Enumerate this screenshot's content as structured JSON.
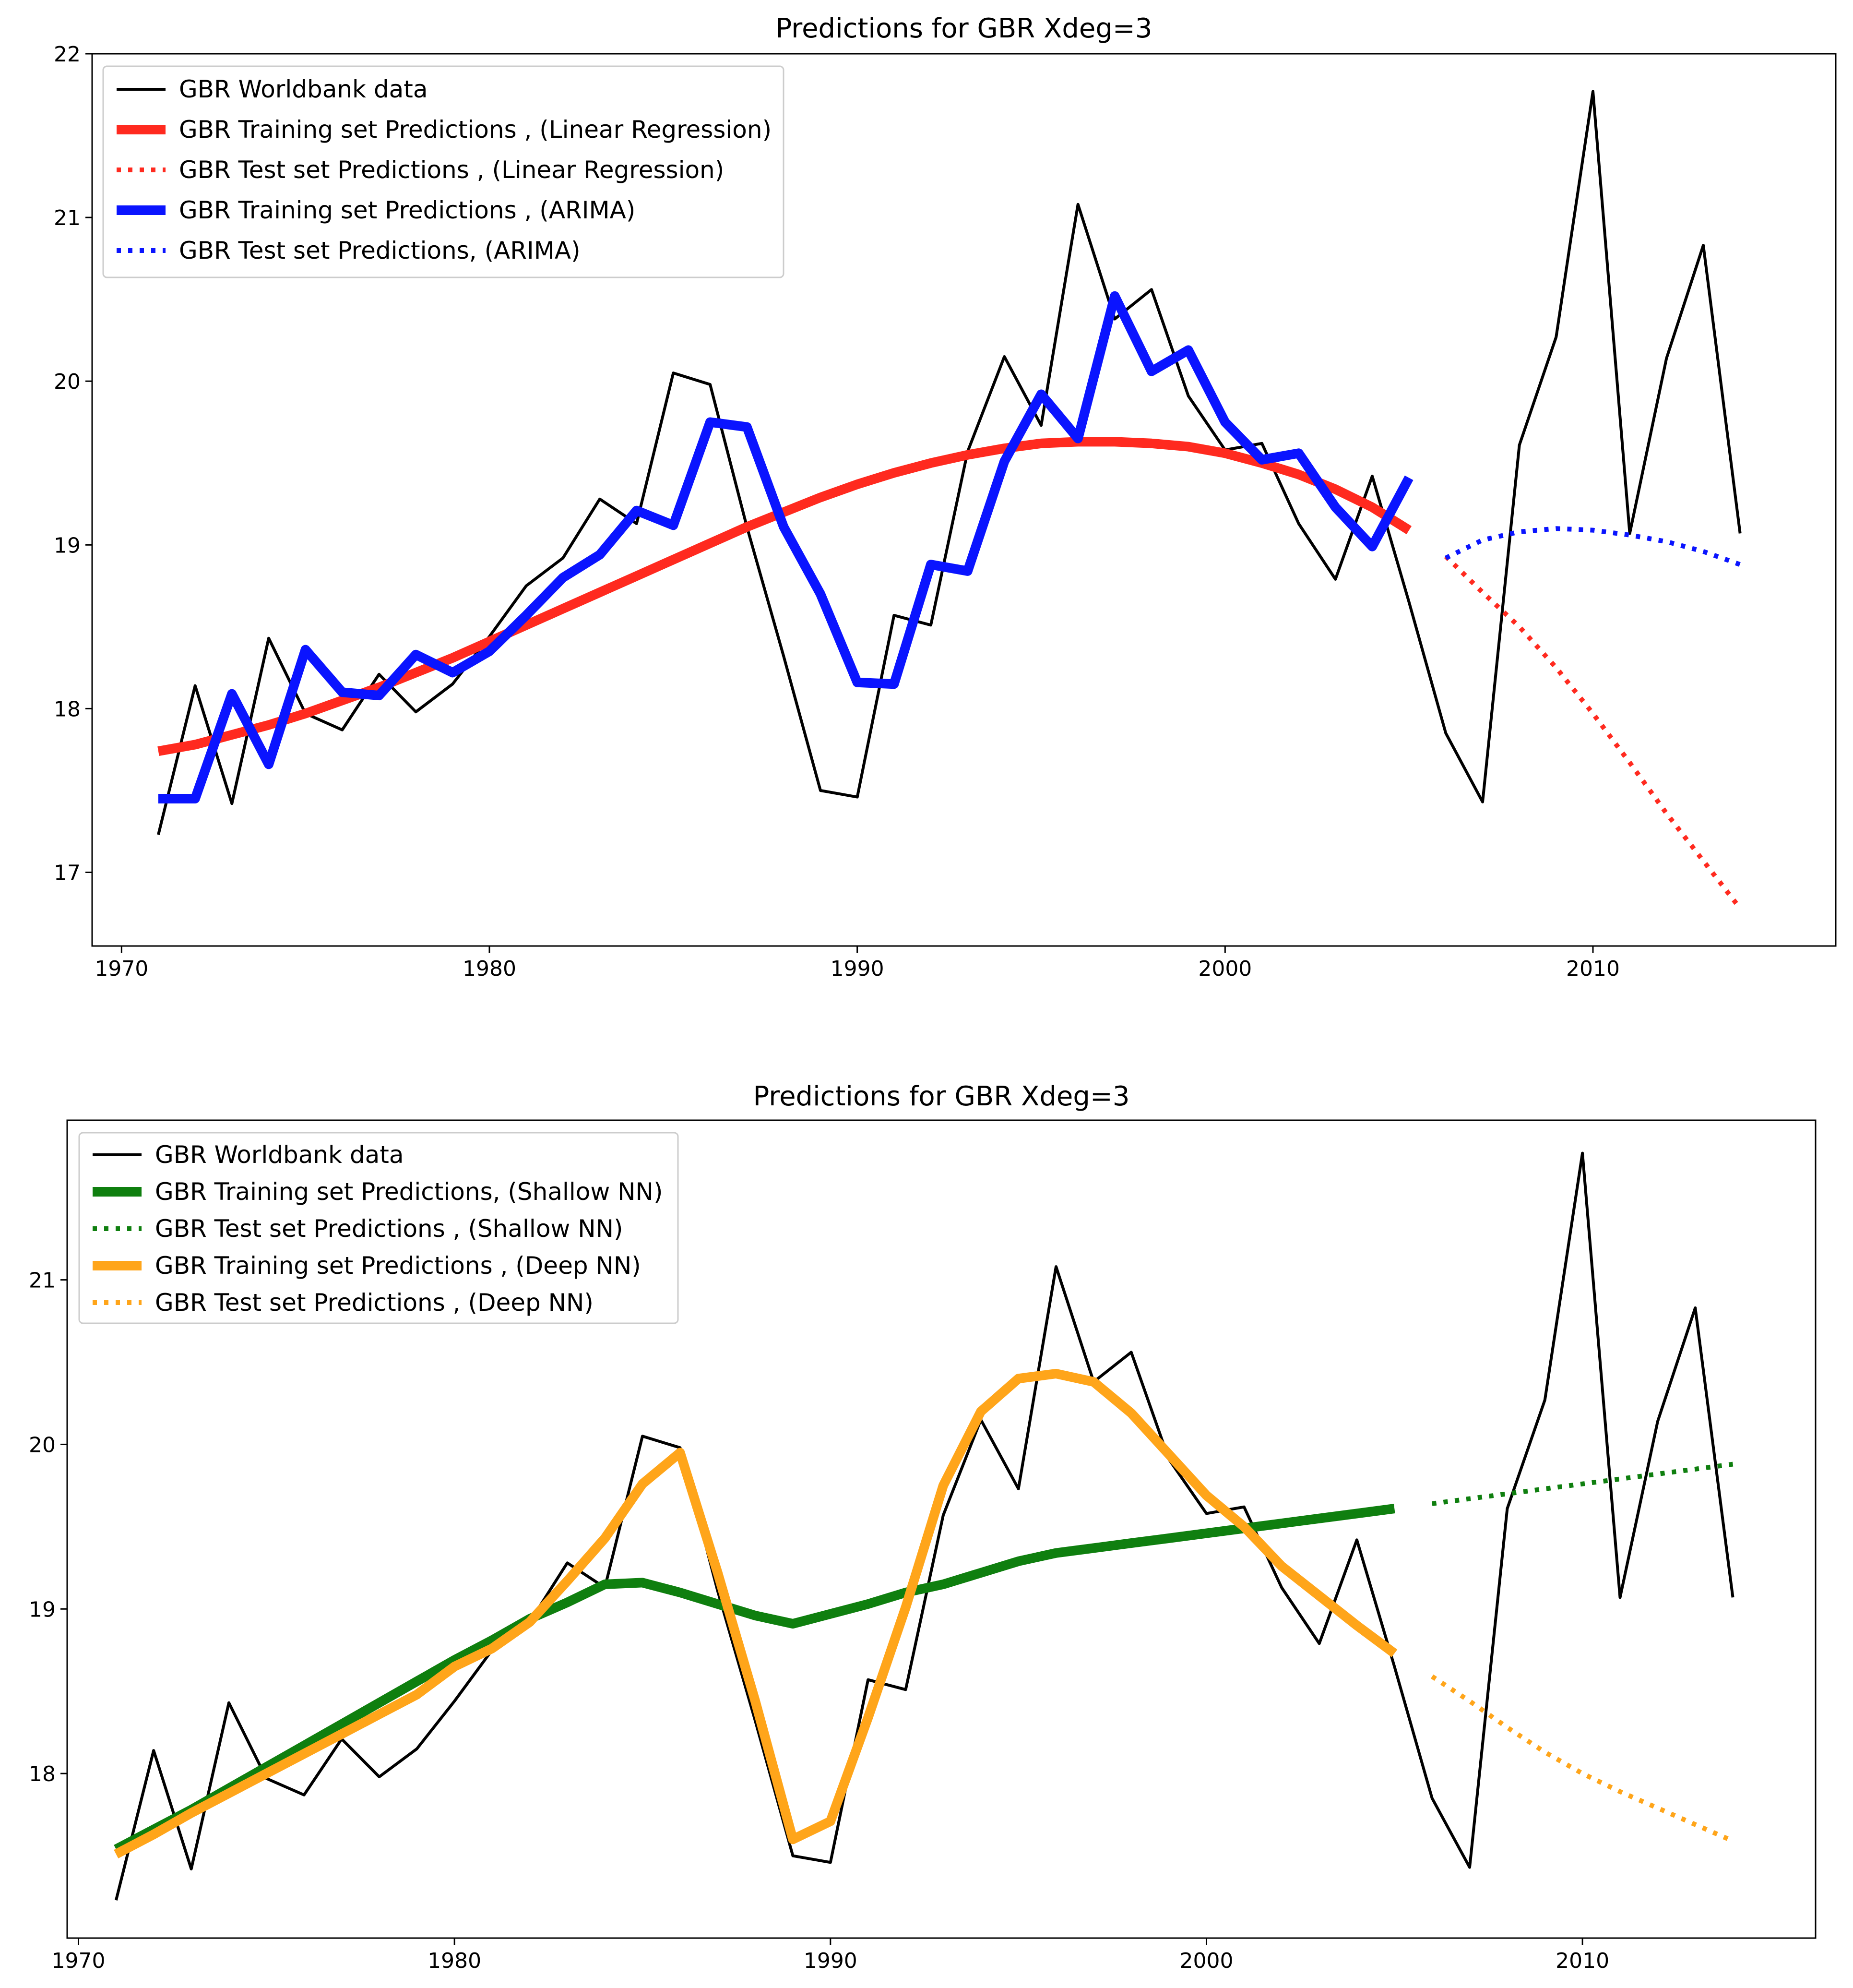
{
  "chart_data": [
    {
      "type": "line",
      "title": "Predictions for GBR  Xdeg=3",
      "xlabel": "",
      "ylabel": "",
      "xlim": [
        1969.2,
        2016.6
      ],
      "ylim": [
        16.55,
        22.0
      ],
      "xticks": [
        1970,
        1980,
        1990,
        2000,
        2010
      ],
      "yticks": [
        17,
        18,
        19,
        20,
        21,
        22
      ],
      "xtick_labels": [
        "1970",
        "1980",
        "1990",
        "2000",
        "2010"
      ],
      "ytick_labels": [
        "17",
        "18",
        "19",
        "20",
        "21",
        "22"
      ],
      "legend_position": "top-left",
      "series": [
        {
          "name": "GBR Worldbank data",
          "color": "#000000",
          "style": "solid",
          "width": "thin",
          "x": [
            1971,
            1972,
            1973,
            1974,
            1975,
            1976,
            1977,
            1978,
            1979,
            1980,
            1981,
            1982,
            1983,
            1984,
            1985,
            1986,
            1987,
            1988,
            1989,
            1990,
            1991,
            1992,
            1993,
            1994,
            1995,
            1996,
            1997,
            1998,
            1999,
            2000,
            2001,
            2002,
            2003,
            2004,
            2005,
            2006,
            2007,
            2008,
            2009,
            2010,
            2011,
            2012,
            2013,
            2014
          ],
          "values": [
            17.23,
            18.14,
            17.42,
            18.43,
            17.97,
            17.87,
            18.21,
            17.98,
            18.15,
            18.44,
            18.75,
            18.92,
            19.28,
            19.13,
            20.05,
            19.98,
            19.11,
            18.32,
            17.5,
            17.46,
            18.57,
            18.51,
            19.57,
            20.15,
            19.73,
            21.08,
            20.38,
            20.56,
            19.91,
            19.58,
            19.62,
            19.13,
            18.79,
            19.42,
            18.65,
            17.85,
            17.43,
            19.61,
            20.27,
            21.77,
            19.07,
            20.14,
            20.83,
            19.07
          ]
        },
        {
          "name": "GBR Training set Predictions , (Linear Regression)",
          "color": "#ff2a1f",
          "style": "solid",
          "width": "thick",
          "x": [
            1971,
            1972,
            1973,
            1974,
            1975,
            1976,
            1977,
            1978,
            1979,
            1980,
            1981,
            1982,
            1983,
            1984,
            1985,
            1986,
            1987,
            1988,
            1989,
            1990,
            1991,
            1992,
            1993,
            1994,
            1995,
            1996,
            1997,
            1998,
            1999,
            2000,
            2001,
            2002,
            2003,
            2004,
            2005
          ],
          "values": [
            17.74,
            17.78,
            17.84,
            17.9,
            17.97,
            18.05,
            18.13,
            18.22,
            18.31,
            18.41,
            18.51,
            18.61,
            18.71,
            18.81,
            18.91,
            19.01,
            19.11,
            19.2,
            19.29,
            19.37,
            19.44,
            19.5,
            19.55,
            19.59,
            19.62,
            19.63,
            19.63,
            19.62,
            19.6,
            19.56,
            19.5,
            19.43,
            19.34,
            19.23,
            19.09
          ]
        },
        {
          "name": "GBR Test set Predictions , (Linear Regression)",
          "color": "#ff2a1f",
          "style": "dotted",
          "width": "medium",
          "x": [
            2006,
            2007,
            2008,
            2009,
            2010,
            2011,
            2012,
            2013,
            2014
          ],
          "values": [
            18.93,
            18.71,
            18.5,
            18.25,
            17.97,
            17.67,
            17.36,
            17.07,
            16.78
          ]
        },
        {
          "name": "GBR Training set Predictions , (ARIMA)",
          "color": "#0a14ff",
          "style": "solid",
          "width": "thick",
          "x": [
            1971,
            1972,
            1973,
            1974,
            1975,
            1976,
            1977,
            1978,
            1979,
            1980,
            1981,
            1982,
            1983,
            1984,
            1985,
            1986,
            1987,
            1988,
            1989,
            1990,
            1991,
            1992,
            1993,
            1994,
            1995,
            1996,
            1997,
            1998,
            1999,
            2000,
            2001,
            2002,
            2003,
            2004,
            2005
          ],
          "values": [
            17.45,
            17.45,
            18.09,
            17.66,
            18.36,
            18.1,
            18.08,
            18.33,
            18.22,
            18.35,
            18.57,
            18.8,
            18.94,
            19.21,
            19.12,
            19.75,
            19.72,
            19.11,
            18.7,
            18.16,
            18.15,
            18.88,
            18.84,
            19.51,
            19.92,
            19.65,
            20.52,
            20.06,
            20.19,
            19.75,
            19.52,
            19.56,
            19.23,
            18.99,
            19.41
          ]
        },
        {
          "name": "GBR Test set Predictions, (ARIMA)",
          "color": "#0a14ff",
          "style": "dotted",
          "width": "medium",
          "x": [
            2006,
            2007,
            2008,
            2009,
            2010,
            2011,
            2012,
            2013,
            2014
          ],
          "values": [
            18.92,
            19.03,
            19.08,
            19.1,
            19.09,
            19.06,
            19.02,
            18.96,
            18.88
          ]
        }
      ]
    },
    {
      "type": "line",
      "title": "Predictions for GBR  Xdeg=3",
      "xlabel": "",
      "ylabel": "",
      "xlim": [
        1969.7,
        2016.2
      ],
      "ylim": [
        17.0,
        21.97
      ],
      "xticks": [
        1970,
        1980,
        1990,
        2000,
        2010
      ],
      "yticks": [
        18,
        19,
        20,
        21
      ],
      "xtick_labels": [
        "1970",
        "1980",
        "1990",
        "2000",
        "2010"
      ],
      "ytick_labels": [
        "18",
        "19",
        "20",
        "21"
      ],
      "legend_position": "top-left",
      "series": [
        {
          "name": "GBR Worldbank data",
          "color": "#000000",
          "style": "solid",
          "width": "thin",
          "x": [
            1971,
            1972,
            1973,
            1974,
            1975,
            1976,
            1977,
            1978,
            1979,
            1980,
            1981,
            1982,
            1983,
            1984,
            1985,
            1986,
            1987,
            1988,
            1989,
            1990,
            1991,
            1992,
            1993,
            1994,
            1995,
            1996,
            1997,
            1998,
            1999,
            2000,
            2001,
            2002,
            2003,
            2004,
            2005,
            2006,
            2007,
            2008,
            2009,
            2010,
            2011,
            2012,
            2013,
            2014
          ],
          "values": [
            17.23,
            18.14,
            17.42,
            18.43,
            17.97,
            17.87,
            18.21,
            17.98,
            18.15,
            18.44,
            18.75,
            18.92,
            19.28,
            19.13,
            20.05,
            19.98,
            19.11,
            18.32,
            17.5,
            17.46,
            18.57,
            18.51,
            19.57,
            20.15,
            19.73,
            21.08,
            20.38,
            20.56,
            19.91,
            19.58,
            19.62,
            19.13,
            18.79,
            19.42,
            18.65,
            17.85,
            17.43,
            19.61,
            20.27,
            21.77,
            19.07,
            20.14,
            20.83,
            19.07
          ]
        },
        {
          "name": "GBR Training set Predictions, (Shallow NN)",
          "color": "#0f7f0f",
          "style": "solid",
          "width": "thick",
          "x": [
            1971,
            1972,
            1973,
            1974,
            1975,
            1976,
            1977,
            1978,
            1979,
            1980,
            1981,
            1982,
            1983,
            1984,
            1985,
            1986,
            1987,
            1988,
            1989,
            1990,
            1991,
            1992,
            1993,
            1994,
            1995,
            1996,
            1997,
            1998,
            1999,
            2000,
            2001,
            2002,
            2003,
            2004,
            2005
          ],
          "values": [
            17.54,
            17.66,
            17.78,
            17.91,
            18.04,
            18.17,
            18.3,
            18.43,
            18.56,
            18.69,
            18.81,
            18.94,
            19.04,
            19.15,
            19.16,
            19.1,
            19.03,
            18.96,
            18.91,
            18.97,
            19.03,
            19.1,
            19.15,
            19.22,
            19.29,
            19.34,
            19.37,
            19.4,
            19.43,
            19.46,
            19.49,
            19.52,
            19.55,
            19.58,
            19.61
          ]
        },
        {
          "name": "GBR Test set Predictions , (Shallow NN)",
          "color": "#0f7f0f",
          "style": "dotted",
          "width": "medium",
          "x": [
            2006,
            2007,
            2008,
            2009,
            2010,
            2011,
            2012,
            2013,
            2014
          ],
          "values": [
            19.64,
            19.67,
            19.7,
            19.73,
            19.76,
            19.79,
            19.82,
            19.85,
            19.88
          ]
        },
        {
          "name": "GBR Training set Predictions , (Deep NN)",
          "color": "#ffa51a",
          "style": "solid",
          "width": "thick",
          "x": [
            1971,
            1972,
            1973,
            1974,
            1975,
            1976,
            1977,
            1978,
            1979,
            1980,
            1981,
            1982,
            1983,
            1984,
            1985,
            1986,
            1987,
            1988,
            1989,
            1990,
            1991,
            1992,
            1993,
            1994,
            1995,
            1996,
            1997,
            1998,
            1999,
            2000,
            2001,
            2002,
            2003,
            2004,
            2005
          ],
          "values": [
            17.51,
            17.63,
            17.76,
            17.88,
            18.0,
            18.12,
            18.24,
            18.36,
            18.48,
            18.65,
            18.76,
            18.92,
            19.17,
            19.43,
            19.76,
            19.95,
            19.22,
            18.44,
            17.6,
            17.71,
            18.34,
            19.01,
            19.75,
            20.2,
            20.4,
            20.43,
            20.38,
            20.19,
            19.94,
            19.69,
            19.5,
            19.26,
            19.08,
            18.9,
            18.73
          ]
        },
        {
          "name": "GBR Test set Predictions , (Deep NN)",
          "color": "#ffa51a",
          "style": "dotted",
          "width": "medium",
          "x": [
            2006,
            2007,
            2008,
            2009,
            2010,
            2011,
            2012,
            2013,
            2014
          ],
          "values": [
            18.59,
            18.44,
            18.28,
            18.13,
            18.0,
            17.89,
            17.79,
            17.69,
            17.59
          ]
        }
      ]
    }
  ]
}
